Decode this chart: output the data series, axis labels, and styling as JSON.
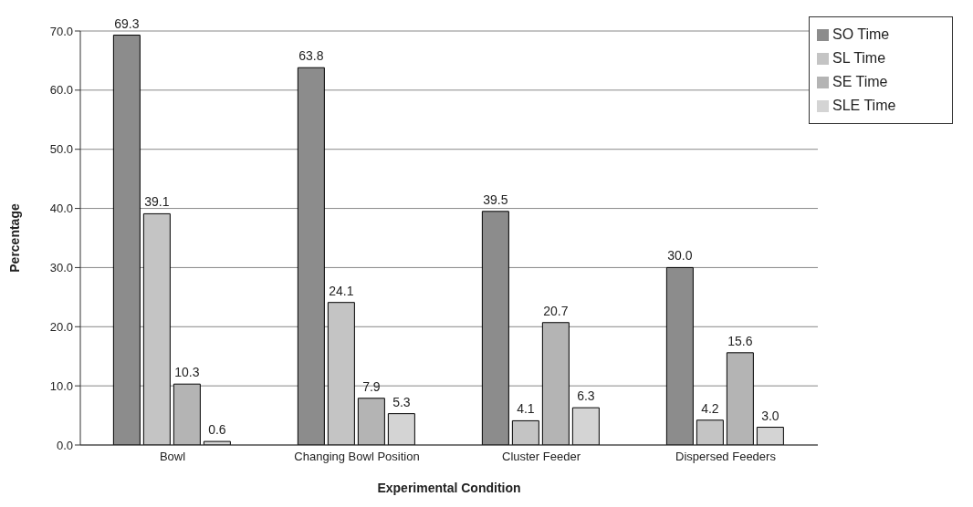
{
  "chart_data": {
    "type": "bar",
    "xlabel": "Experimental Condition",
    "ylabel": "Percentage",
    "categories": [
      "Bowl",
      "Changing Bowl Position",
      "Cluster Feeder",
      "Dispersed Feeders"
    ],
    "series": [
      {
        "name": "SO Time",
        "color": "#8c8c8c",
        "values": [
          69.3,
          63.8,
          39.5,
          30.0
        ],
        "value_labels": [
          "69.3",
          "63.8",
          "39.5",
          "30.0"
        ]
      },
      {
        "name": "SL Time",
        "color": "#c4c4c4",
        "values": [
          39.1,
          24.1,
          4.1,
          4.2
        ],
        "value_labels": [
          "39.1",
          "24.1",
          "4.1",
          "4.2"
        ]
      },
      {
        "name": "SE Time",
        "color": "#b4b4b4",
        "values": [
          10.3,
          7.9,
          20.7,
          15.6
        ],
        "value_labels": [
          "10.3",
          "7.9",
          "20.7",
          "15.6"
        ]
      },
      {
        "name": "SLE Time",
        "color": "#d4d4d4",
        "values": [
          0.6,
          5.3,
          6.3,
          3.0
        ],
        "value_labels": [
          "0.6",
          "5.3",
          "6.3",
          "3.0"
        ]
      }
    ],
    "ylim": [
      0,
      70
    ],
    "yticks": [
      {
        "value": 0,
        "label": "0.0"
      },
      {
        "value": 10,
        "label": "10.0"
      },
      {
        "value": 20,
        "label": "20.0"
      },
      {
        "value": 30,
        "label": "30.0"
      },
      {
        "value": 40,
        "label": "40.0"
      },
      {
        "value": 50,
        "label": "50.0"
      },
      {
        "value": 60,
        "label": "60.0"
      },
      {
        "value": 70,
        "label": "70.0"
      }
    ],
    "grid": "y",
    "legend": "top right"
  }
}
